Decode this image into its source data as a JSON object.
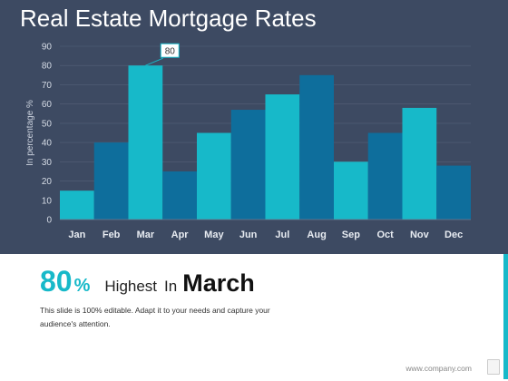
{
  "slide": {
    "title": "Real Estate Mortgage Rates",
    "stat_number": "80",
    "stat_percent": "%",
    "stat_word1": "Highest",
    "stat_word2": "In",
    "stat_month": "March",
    "description": "This slide is 100% editable. Adapt it to your needs and capture your audience's attention.",
    "footer": "www.company.com"
  },
  "chart_data": {
    "type": "bar",
    "categories": [
      "Jan",
      "Feb",
      "Mar",
      "Apr",
      "May",
      "Jun",
      "Jul",
      "Aug",
      "Sep",
      "Oct",
      "Nov",
      "Dec"
    ],
    "values": [
      15,
      40,
      80,
      25,
      45,
      57,
      65,
      75,
      30,
      45,
      58,
      28
    ],
    "ylabel": "In percentage %",
    "ylim": [
      0,
      90
    ],
    "yticks": [
      0,
      10,
      20,
      30,
      40,
      50,
      60,
      70,
      80,
      90
    ],
    "grid": true,
    "callout": {
      "category": "Mar",
      "label": "80"
    },
    "colors": [
      "#17b9c9",
      "#0e6e9c"
    ]
  }
}
